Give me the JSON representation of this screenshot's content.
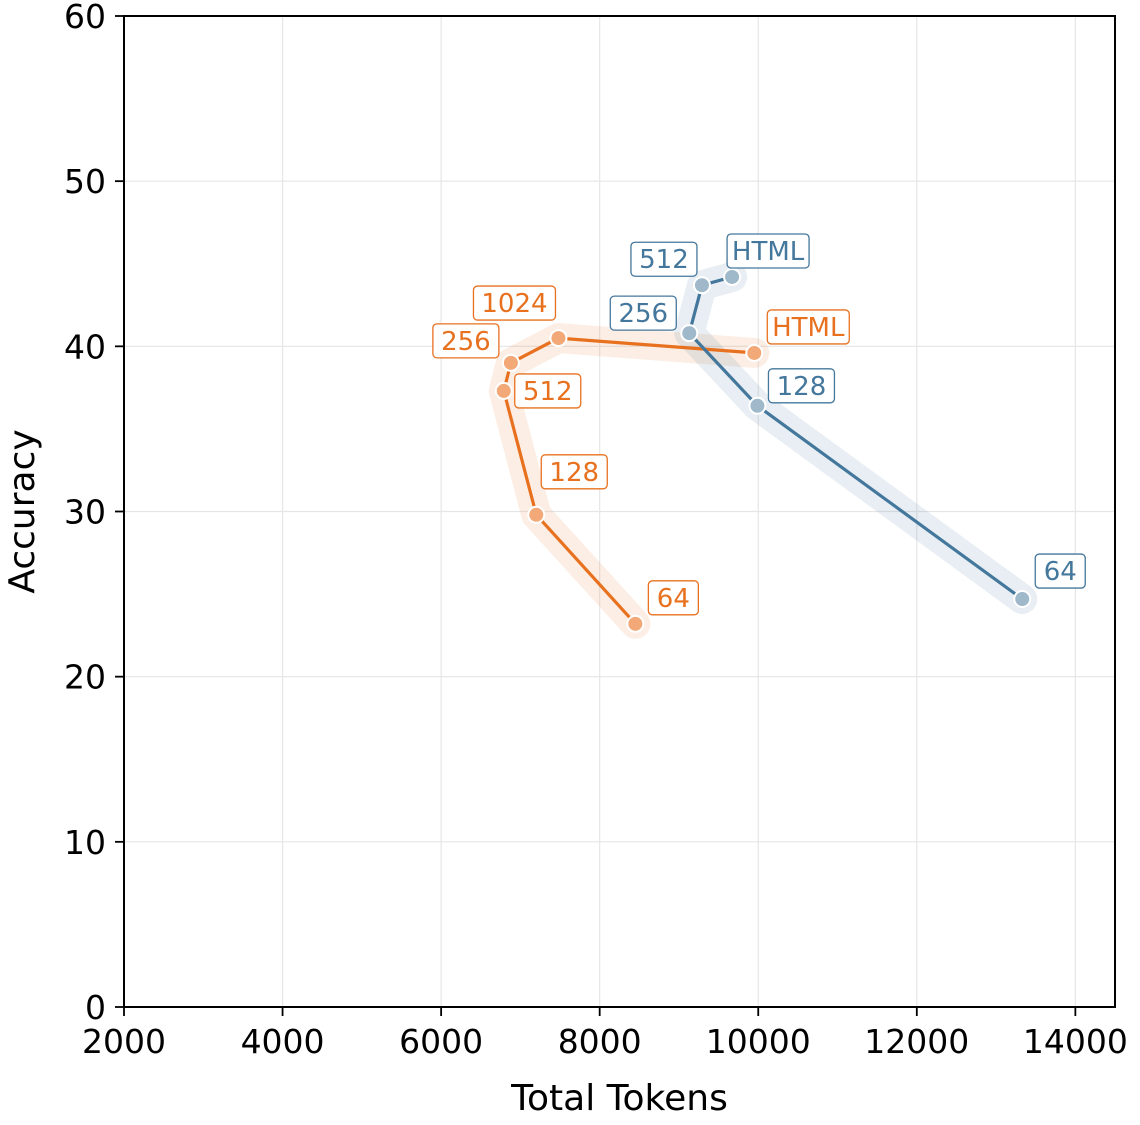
{
  "chart_data": {
    "type": "line",
    "xlabel": "Total Tokens",
    "ylabel": "Accuracy",
    "xlim": [
      2000,
      14500
    ],
    "ylim": [
      0,
      60
    ],
    "xticks": [
      2000,
      4000,
      6000,
      8000,
      10000,
      12000,
      14000
    ],
    "yticks": [
      0,
      10,
      20,
      30,
      40,
      50,
      60
    ],
    "grid": true,
    "series": [
      {
        "color": "#e8711f",
        "points": [
          {
            "label": "64",
            "x": 8450,
            "y": 23.2
          },
          {
            "label": "128",
            "x": 7200,
            "y": 29.8
          },
          {
            "label": "512",
            "x": 6790,
            "y": 37.3
          },
          {
            "label": "256",
            "x": 6880,
            "y": 39.0
          },
          {
            "label": "1024",
            "x": 7480,
            "y": 40.5
          },
          {
            "label": "HTML",
            "x": 9950,
            "y": 39.6
          }
        ]
      },
      {
        "color": "#44779c",
        "points": [
          {
            "label": "64",
            "x": 13330,
            "y": 24.7
          },
          {
            "label": "128",
            "x": 9990,
            "y": 36.4
          },
          {
            "label": "256",
            "x": 9130,
            "y": 40.8
          },
          {
            "label": "512",
            "x": 9290,
            "y": 43.7
          },
          {
            "label": "HTML",
            "x": 9670,
            "y": 44.2
          }
        ]
      }
    ]
  }
}
